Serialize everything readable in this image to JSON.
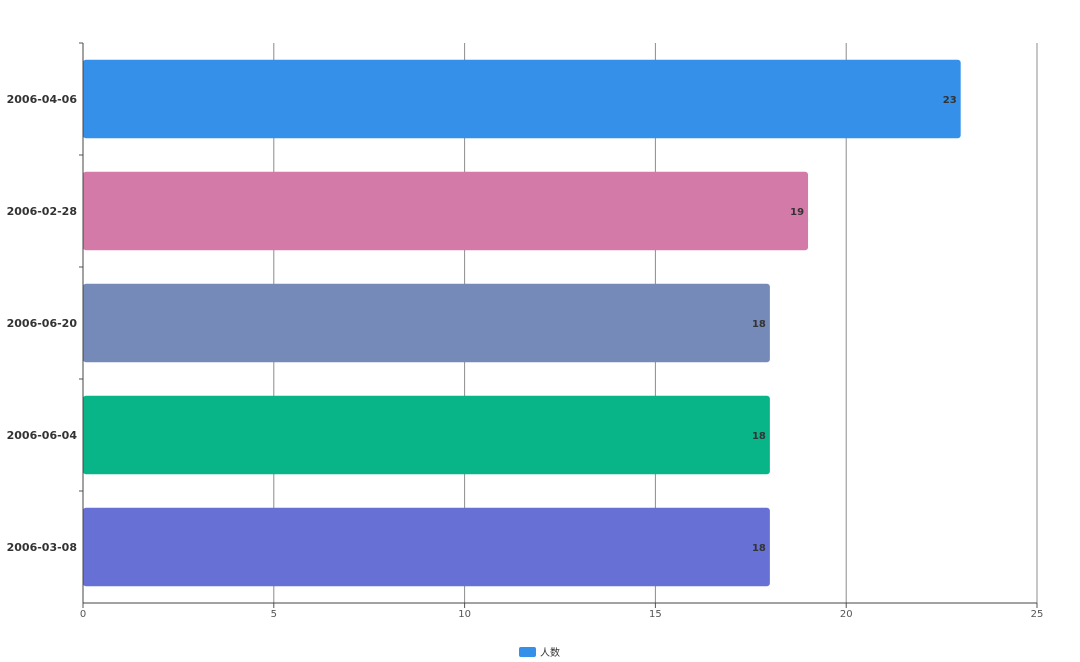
{
  "chart_data": {
    "type": "bar",
    "orientation": "horizontal",
    "categories": [
      "2006-04-06",
      "2006-02-28",
      "2006-06-20",
      "2006-06-04",
      "2006-03-08"
    ],
    "series": [
      {
        "name": "人数",
        "values": [
          23,
          19,
          18,
          18,
          18
        ]
      }
    ],
    "bar_colors": [
      "#3590e9",
      "#d47aa8",
      "#758ab9",
      "#08b589",
      "#6771d5"
    ],
    "xlim": [
      0,
      25
    ],
    "xticks": [
      0,
      5,
      10,
      15,
      20,
      25
    ],
    "grid": "vertical",
    "legend": {
      "position": "bottom-center",
      "label": "人数",
      "color": "#3590e9"
    },
    "title": "",
    "xlabel": "",
    "ylabel": ""
  }
}
